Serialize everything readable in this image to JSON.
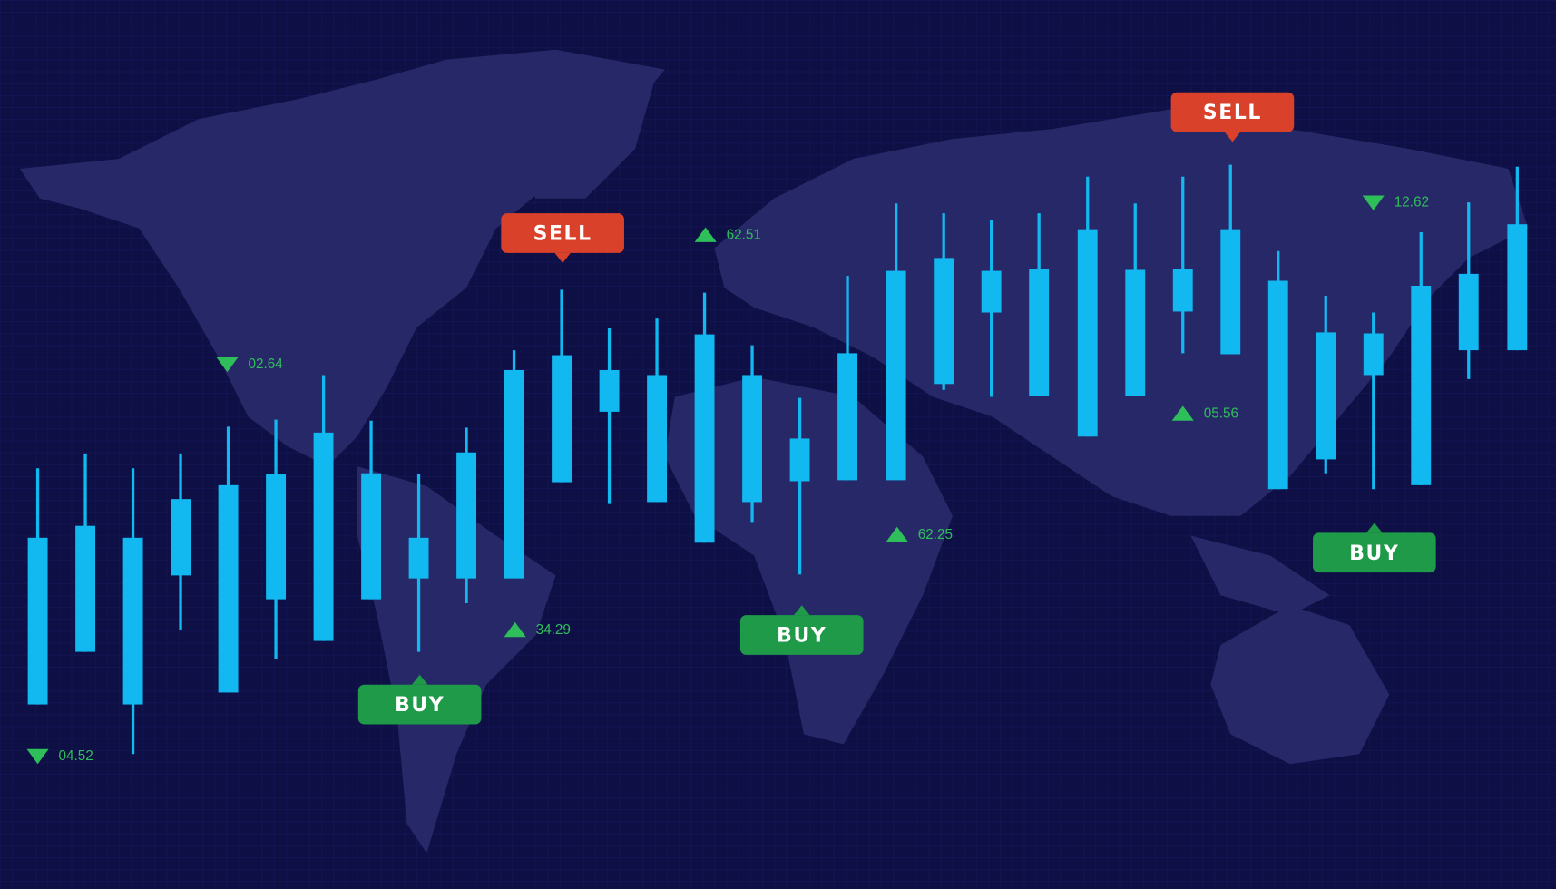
{
  "signals": [
    {
      "text": "SELL"
    },
    {
      "text": "SELL"
    },
    {
      "text": "BUY"
    },
    {
      "text": "BUY"
    },
    {
      "text": "BUY"
    }
  ],
  "tickers": [
    {
      "text": "62.51"
    },
    {
      "text": "12.62"
    },
    {
      "text": "02.64"
    },
    {
      "text": "05.56"
    },
    {
      "text": "62.25"
    },
    {
      "text": "34.29"
    },
    {
      "text": "04.52"
    }
  ]
}
